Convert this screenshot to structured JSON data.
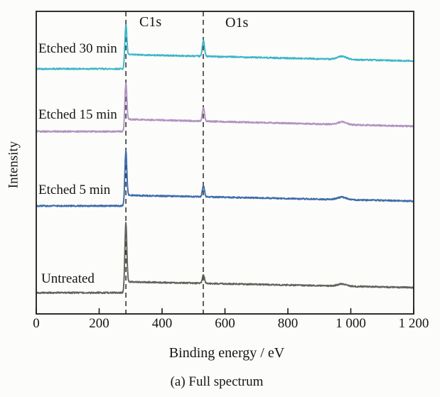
{
  "caption": "(a) Full spectrum",
  "chart_data": {
    "type": "line",
    "title": "",
    "xlabel": "Binding energy / eV",
    "ylabel": "Intensity",
    "xlim": [
      0,
      1200
    ],
    "ylim_note": "y axis unlabeled, intensity in arbitrary units (0-100 of plot height)",
    "grid": false,
    "legend_position": "inline-left-of-curves",
    "x_ticks": [
      0,
      200,
      400,
      600,
      800,
      1000,
      1200
    ],
    "x_tick_labels": [
      "0",
      "200",
      "400",
      "600",
      "800",
      "1 000",
      "1 200"
    ],
    "dashed_guide_lines_x_eV": [
      285,
      531
    ],
    "annotations": [
      {
        "label": "C1s",
        "x_eV": 285
      },
      {
        "label": "O1s",
        "x_eV": 531
      }
    ],
    "auger_feature_x_eV": 972,
    "series": [
      {
        "name": "Etched 30 min",
        "color": "#3cb6c8",
        "profile": {
          "base": 81.0,
          "c1s_peak": 95.5,
          "post_c1s": 85.7,
          "o1s_peak": 90.4,
          "auger_bump": 1.0,
          "end": 83.6
        }
      },
      {
        "name": "Etched 15 min",
        "color": "#b192c0",
        "profile": {
          "base": 60.3,
          "c1s_peak": 76.3,
          "post_c1s": 64.3,
          "o1s_peak": 68.1,
          "auger_bump": 0.9,
          "end": 62.0
        }
      },
      {
        "name": "Etched 5 min",
        "color": "#3e6caa",
        "profile": {
          "base": 35.7,
          "c1s_peak": 53.8,
          "post_c1s": 39.2,
          "o1s_peak": 42.3,
          "auger_bump": 0.8,
          "end": 37.3
        }
      },
      {
        "name": "Untreated",
        "color": "#63635c",
        "profile": {
          "base": 7.0,
          "c1s_peak": 30.0,
          "post_c1s": 10.6,
          "o1s_peak": 12.9,
          "auger_bump": 0.7,
          "end": 8.7
        }
      }
    ],
    "frame_color": "#1a1a1a"
  }
}
